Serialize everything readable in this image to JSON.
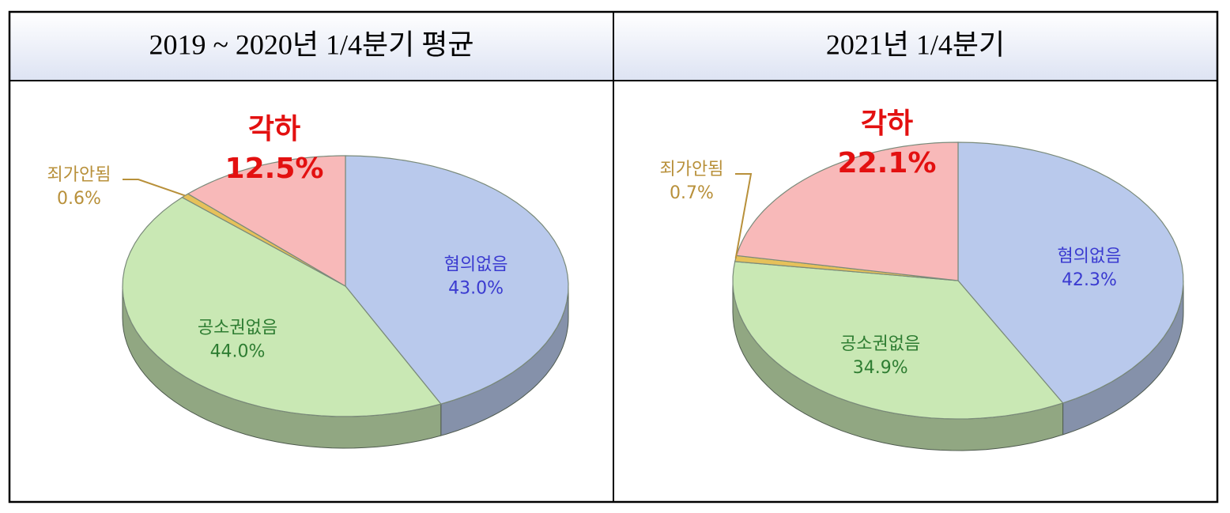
{
  "chart_data": [
    {
      "type": "pie",
      "title": "2019 ~ 2020년  1/4분기  평균",
      "categories": [
        "혐의없음",
        "공소권없음",
        "죄가안됨",
        "각하"
      ],
      "values": [
        43.0,
        44.0,
        0.6,
        12.5
      ],
      "value_labels": [
        "43.0%",
        "44.0%",
        "0.6%",
        "12.5%"
      ],
      "colors": [
        "#b9c9ec",
        "#c9e8b4",
        "#e6c15a",
        "#f8b9b9"
      ]
    },
    {
      "type": "pie",
      "title": "2021년  1/4분기",
      "categories": [
        "혐의없음",
        "공소권없음",
        "죄가안됨",
        "각하"
      ],
      "values": [
        42.3,
        34.9,
        0.7,
        22.1
      ],
      "value_labels": [
        "42.3%",
        "34.9%",
        "0.7%",
        "22.1%"
      ],
      "colors": [
        "#b9c9ec",
        "#c9e8b4",
        "#e6c15a",
        "#f8b9b9"
      ]
    }
  ]
}
